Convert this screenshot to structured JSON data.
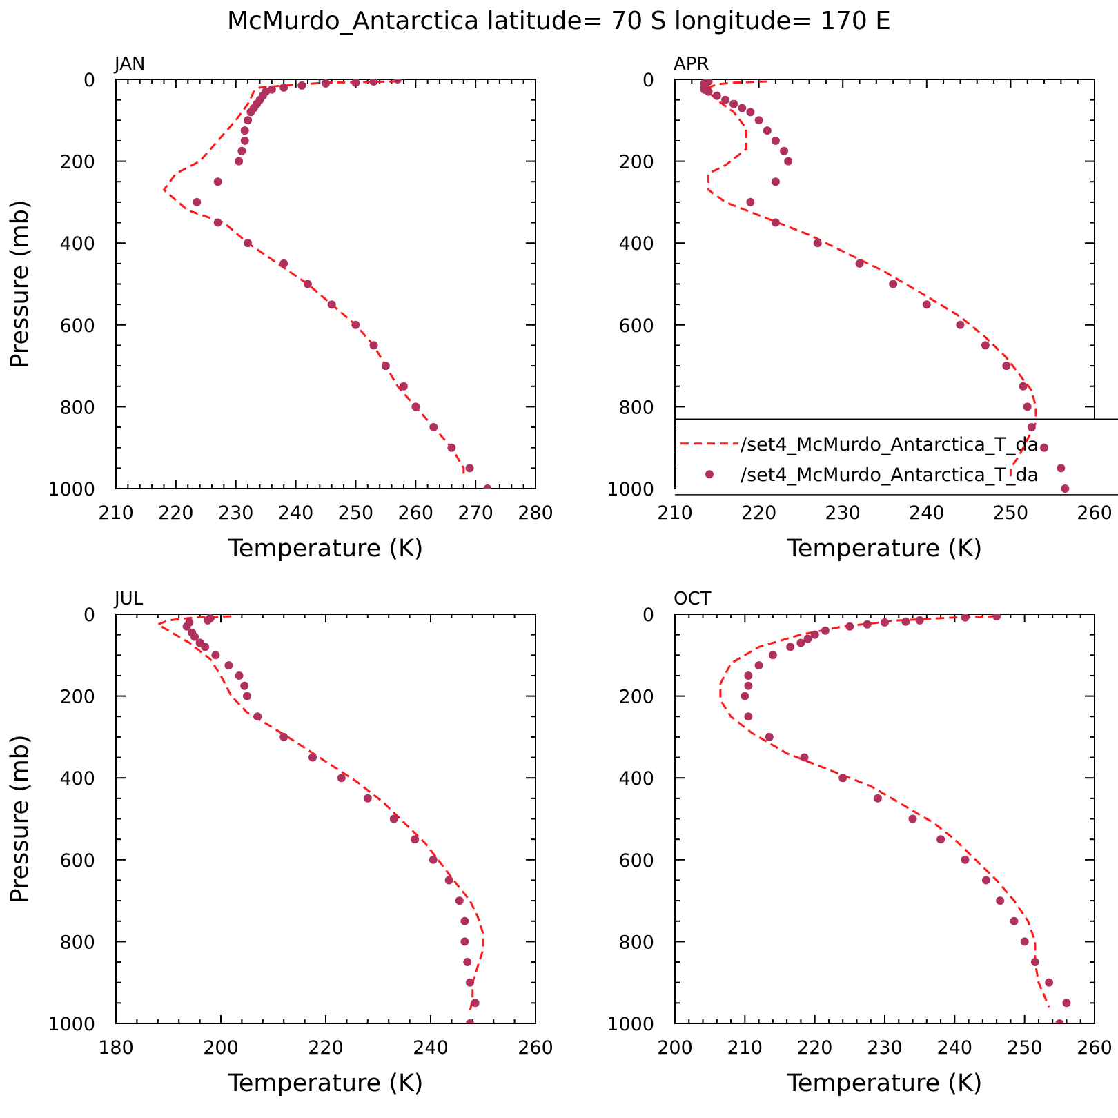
{
  "title": "McMurdo_Antarctica  latitude= 70 S longitude= 170 E",
  "colors": {
    "model_line": "#ff1a1a",
    "obs_marker": "#b0305e",
    "axis": "#000000"
  },
  "legend": {
    "entries": [
      {
        "label": "/set4_McMurdo_Antarctica_T_da",
        "style": "dashed-line",
        "color": "#ff1a1a"
      },
      {
        "label": "/set4_McMurdo_Antarctica_T_da",
        "style": "marker",
        "color": "#b0305e"
      }
    ],
    "placement": "APR panel, lower right (clipped at figure edge)"
  },
  "chart_data": [
    {
      "type": "line",
      "panel": "JAN",
      "xlabel": "Temperature (K)",
      "ylabel": "Pressure (mb)",
      "xlim": [
        210,
        280
      ],
      "ylim": [
        1000,
        0
      ],
      "xticks": [
        210,
        220,
        230,
        240,
        250,
        260,
        270,
        280
      ],
      "yticks": [
        0,
        200,
        400,
        600,
        800,
        1000
      ],
      "series": [
        {
          "style": "dashed-line",
          "points": [
            [
              257,
              5
            ],
            [
              245,
              8
            ],
            [
              238,
              15
            ],
            [
              234,
              20
            ],
            [
              233,
              30
            ],
            [
              232,
              60
            ],
            [
              230,
              100
            ],
            [
              227,
              150
            ],
            [
              224,
              200
            ],
            [
              220,
              230
            ],
            [
              219,
              250
            ],
            [
              218,
              270
            ],
            [
              222,
              320
            ],
            [
              228,
              350
            ],
            [
              232,
              400
            ],
            [
              237,
              450
            ],
            [
              242,
              500
            ],
            [
              246,
              550
            ],
            [
              250,
              600
            ],
            [
              253,
              650
            ],
            [
              255,
              700
            ],
            [
              257,
              750
            ],
            [
              260,
              800
            ],
            [
              263,
              850
            ],
            [
              266,
              900
            ],
            [
              268,
              950
            ],
            [
              268,
              970
            ]
          ]
        },
        {
          "style": "marker",
          "points": [
            [
              257,
              0
            ],
            [
              253,
              5
            ],
            [
              250,
              8
            ],
            [
              245,
              10
            ],
            [
              241,
              15
            ],
            [
              238,
              20
            ],
            [
              236,
              25
            ],
            [
              235,
              30
            ],
            [
              234.5,
              40
            ],
            [
              234,
              50
            ],
            [
              233.5,
              60
            ],
            [
              233,
              70
            ],
            [
              232.5,
              80
            ],
            [
              232,
              100
            ],
            [
              231.5,
              125
            ],
            [
              231.5,
              150
            ],
            [
              231,
              175
            ],
            [
              230.5,
              200
            ],
            [
              227,
              250
            ],
            [
              223.5,
              300
            ],
            [
              227,
              350
            ],
            [
              232,
              400
            ],
            [
              238,
              450
            ],
            [
              242,
              500
            ],
            [
              246,
              550
            ],
            [
              250,
              600
            ],
            [
              253,
              650
            ],
            [
              255,
              700
            ],
            [
              258,
              750
            ],
            [
              260,
              800
            ],
            [
              263,
              850
            ],
            [
              266,
              900
            ],
            [
              269,
              950
            ],
            [
              272,
              1000
            ]
          ]
        }
      ]
    },
    {
      "type": "line",
      "panel": "APR",
      "xlabel": "Temperature (K)",
      "ylabel": "",
      "xlim": [
        210,
        260
      ],
      "ylim": [
        1000,
        0
      ],
      "xticks": [
        210,
        220,
        230,
        240,
        250,
        260
      ],
      "yticks": [
        0,
        200,
        400,
        600,
        800,
        1000
      ],
      "series": [
        {
          "style": "dashed-line",
          "points": [
            [
              221,
              5
            ],
            [
              217,
              8
            ],
            [
              215,
              12
            ],
            [
              214,
              20
            ],
            [
              214,
              30
            ],
            [
              215,
              50
            ],
            [
              217,
              80
            ],
            [
              218.5,
              120
            ],
            [
              218.5,
              170
            ],
            [
              216,
              210
            ],
            [
              214,
              230
            ],
            [
              214,
              270
            ],
            [
              216,
              300
            ],
            [
              221,
              340
            ],
            [
              226,
              380
            ],
            [
              230,
              420
            ],
            [
              235,
              470
            ],
            [
              240,
              530
            ],
            [
              244,
              580
            ],
            [
              247,
              630
            ],
            [
              249.5,
              680
            ],
            [
              251,
              720
            ],
            [
              252.5,
              760
            ],
            [
              253,
              800
            ],
            [
              253,
              840
            ],
            [
              252,
              880
            ],
            [
              251,
              920
            ],
            [
              250,
              950
            ],
            [
              250,
              970
            ]
          ]
        },
        {
          "style": "marker",
          "points": [
            [
              214,
              5
            ],
            [
              213.5,
              10
            ],
            [
              213.5,
              20
            ],
            [
              213.5,
              25
            ],
            [
              214,
              30
            ],
            [
              215,
              40
            ],
            [
              216,
              50
            ],
            [
              217,
              60
            ],
            [
              218,
              70
            ],
            [
              219,
              80
            ],
            [
              220,
              100
            ],
            [
              221,
              125
            ],
            [
              222,
              150
            ],
            [
              223,
              175
            ],
            [
              223.5,
              200
            ],
            [
              222,
              250
            ],
            [
              219,
              300
            ],
            [
              222,
              350
            ],
            [
              227,
              400
            ],
            [
              232,
              450
            ],
            [
              236,
              500
            ],
            [
              240,
              550
            ],
            [
              244,
              600
            ],
            [
              247,
              650
            ],
            [
              249.5,
              700
            ],
            [
              251.5,
              750
            ],
            [
              252,
              800
            ],
            [
              252.5,
              850
            ],
            [
              254,
              900
            ],
            [
              256,
              950
            ],
            [
              256.5,
              1000
            ]
          ]
        }
      ]
    },
    {
      "type": "line",
      "panel": "JUL",
      "xlabel": "Temperature (K)",
      "ylabel": "Pressure (mb)",
      "xlim": [
        180,
        260
      ],
      "ylim": [
        1000,
        0
      ],
      "xticks": [
        180,
        200,
        220,
        240,
        260
      ],
      "yticks": [
        0,
        200,
        400,
        600,
        800,
        1000
      ],
      "series": [
        {
          "style": "dashed-line",
          "points": [
            [
              202,
              5
            ],
            [
              195,
              8
            ],
            [
              190,
              15
            ],
            [
              188,
              25
            ],
            [
              190,
              40
            ],
            [
              194,
              70
            ],
            [
              198,
              110
            ],
            [
              200,
              150
            ],
            [
              202,
              200
            ],
            [
              205,
              240
            ],
            [
              209,
              270
            ],
            [
              214,
              310
            ],
            [
              220,
              360
            ],
            [
              226,
              410
            ],
            [
              231,
              460
            ],
            [
              235,
              510
            ],
            [
              239,
              560
            ],
            [
              242,
              610
            ],
            [
              245,
              660
            ],
            [
              247.5,
              700
            ],
            [
              249,
              740
            ],
            [
              250,
              780
            ],
            [
              250,
              820
            ],
            [
              249,
              860
            ],
            [
              248,
              900
            ],
            [
              248,
              940
            ],
            [
              247.5,
              970
            ]
          ]
        },
        {
          "style": "marker",
          "points": [
            [
              198,
              10
            ],
            [
              197.5,
              15
            ],
            [
              194,
              20
            ],
            [
              193.5,
              30
            ],
            [
              194.5,
              45
            ],
            [
              195,
              55
            ],
            [
              196,
              70
            ],
            [
              197,
              80
            ],
            [
              199,
              100
            ],
            [
              201.5,
              125
            ],
            [
              203.5,
              150
            ],
            [
              204.5,
              175
            ],
            [
              205,
              200
            ],
            [
              207,
              250
            ],
            [
              212,
              300
            ],
            [
              217.5,
              350
            ],
            [
              223,
              400
            ],
            [
              228,
              450
            ],
            [
              233,
              500
            ],
            [
              237,
              550
            ],
            [
              240.5,
              600
            ],
            [
              243.5,
              650
            ],
            [
              245.5,
              700
            ],
            [
              246.5,
              750
            ],
            [
              246.5,
              800
            ],
            [
              247,
              850
            ],
            [
              247.5,
              900
            ],
            [
              248.5,
              950
            ],
            [
              247.5,
              1000
            ]
          ]
        }
      ]
    },
    {
      "type": "line",
      "panel": "OCT",
      "xlabel": "Temperature (K)",
      "ylabel": "",
      "xlim": [
        200,
        260
      ],
      "ylim": [
        1000,
        0
      ],
      "xticks": [
        200,
        210,
        220,
        230,
        240,
        250,
        260
      ],
      "yticks": [
        0,
        200,
        400,
        600,
        800,
        1000
      ],
      "series": [
        {
          "style": "dashed-line",
          "points": [
            [
              246,
              5
            ],
            [
              240,
              8
            ],
            [
              232,
              15
            ],
            [
              224,
              30
            ],
            [
              218,
              50
            ],
            [
              212,
              80
            ],
            [
              208,
              120
            ],
            [
              206.5,
              170
            ],
            [
              206.5,
              210
            ],
            [
              208,
              250
            ],
            [
              211,
              290
            ],
            [
              216,
              340
            ],
            [
              222,
              380
            ],
            [
              228,
              420
            ],
            [
              233,
              470
            ],
            [
              237,
              510
            ],
            [
              240,
              550
            ],
            [
              243,
              600
            ],
            [
              246,
              650
            ],
            [
              248.5,
              700
            ],
            [
              250.5,
              750
            ],
            [
              251.5,
              800
            ],
            [
              251.5,
              850
            ],
            [
              252,
              900
            ],
            [
              253,
              940
            ],
            [
              253.5,
              960
            ]
          ]
        },
        {
          "style": "marker",
          "points": [
            [
              246,
              5
            ],
            [
              241.5,
              8
            ],
            [
              235,
              15
            ],
            [
              233,
              18
            ],
            [
              230,
              20
            ],
            [
              227.5,
              25
            ],
            [
              225,
              30
            ],
            [
              221.5,
              40
            ],
            [
              220,
              50
            ],
            [
              219,
              60
            ],
            [
              218,
              70
            ],
            [
              216.5,
              80
            ],
            [
              214,
              100
            ],
            [
              212,
              125
            ],
            [
              210.5,
              150
            ],
            [
              210.5,
              175
            ],
            [
              210,
              200
            ],
            [
              210.5,
              250
            ],
            [
              213.5,
              300
            ],
            [
              218.5,
              350
            ],
            [
              224,
              400
            ],
            [
              229,
              450
            ],
            [
              234,
              500
            ],
            [
              238,
              550
            ],
            [
              241.5,
              600
            ],
            [
              244.5,
              650
            ],
            [
              246.5,
              700
            ],
            [
              248.5,
              750
            ],
            [
              250,
              800
            ],
            [
              251.5,
              850
            ],
            [
              253.5,
              900
            ],
            [
              256,
              950
            ],
            [
              255,
              1000
            ]
          ]
        }
      ]
    }
  ]
}
